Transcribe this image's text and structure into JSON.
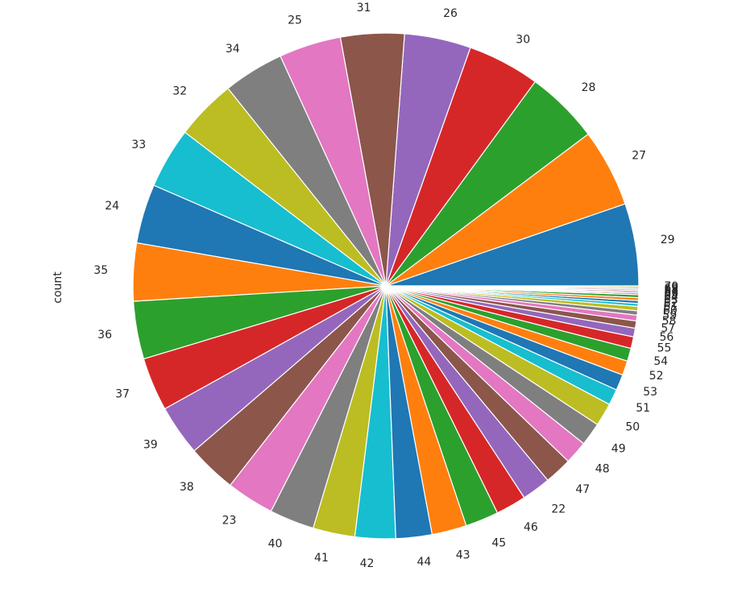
{
  "chart_data": {
    "type": "pie",
    "ylabel": "count",
    "categories": [
      "29",
      "27",
      "28",
      "30",
      "26",
      "31",
      "25",
      "34",
      "32",
      "33",
      "24",
      "35",
      "36",
      "37",
      "39",
      "38",
      "23",
      "40",
      "41",
      "42",
      "44",
      "43",
      "45",
      "46",
      "22",
      "47",
      "48",
      "49",
      "50",
      "51",
      "53",
      "52",
      "54",
      "55",
      "56",
      "57",
      "58",
      "59",
      "60",
      "61",
      "62",
      "63",
      "64",
      "65",
      "66",
      "67",
      "68",
      "69",
      "70"
    ],
    "values": [
      57,
      54,
      51,
      50,
      46,
      44,
      43,
      42,
      42,
      42,
      41,
      40,
      40,
      37,
      35,
      34,
      33,
      31,
      29,
      28,
      25,
      24,
      23,
      21,
      20,
      19,
      16,
      16,
      16,
      11,
      11,
      10,
      9,
      8,
      6,
      5,
      4,
      3,
      3,
      2,
      2,
      2,
      2,
      1,
      1,
      1,
      1,
      1,
      1
    ],
    "colors": [
      "#1f77b4",
      "#ff7f0e",
      "#2ca02c",
      "#d62728",
      "#9467bd",
      "#8c564b",
      "#e377c2",
      "#7f7f7f",
      "#bcbd22",
      "#17becf"
    ],
    "startangle": 0,
    "counterclock": true
  }
}
